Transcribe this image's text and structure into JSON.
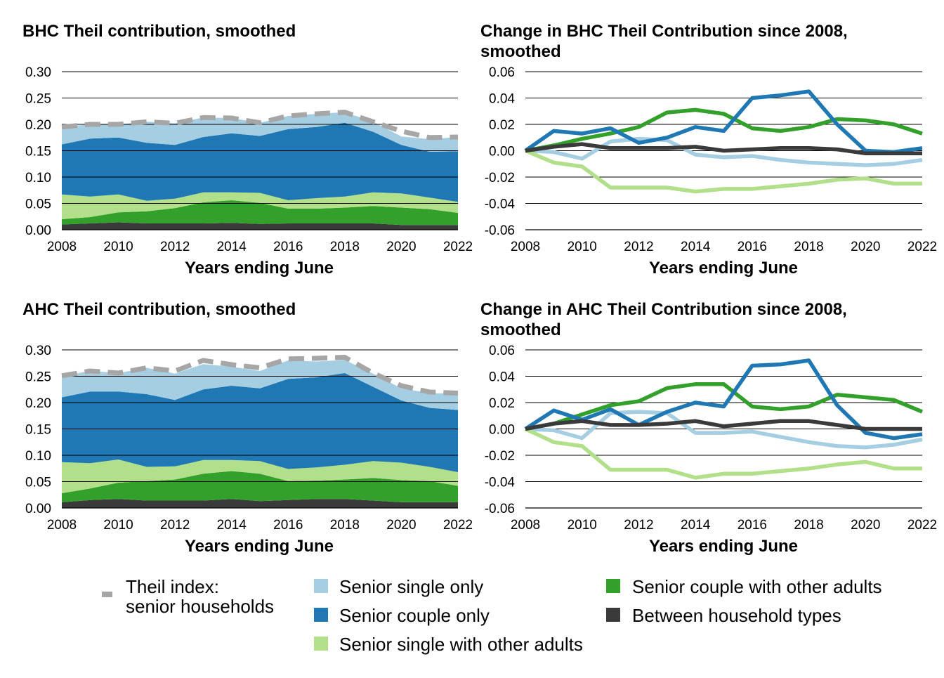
{
  "chart_data": [
    {
      "type": "area",
      "kind": "stacked",
      "title": "BHC Theil contribution, smoothed",
      "xlabel": "Years ending June",
      "ylabel": "",
      "x": [
        2008,
        2009,
        2010,
        2011,
        2012,
        2013,
        2014,
        2015,
        2016,
        2017,
        2018,
        2019,
        2020,
        2021,
        2022
      ],
      "xticks": [
        "2008",
        "2010",
        "2012",
        "2014",
        "2016",
        "2018",
        "2020",
        "2022"
      ],
      "yticks": [
        "0.00",
        "0.05",
        "0.10",
        "0.15",
        "0.20",
        "0.25",
        "0.30"
      ],
      "ylim": [
        0,
        0.3
      ],
      "series": [
        {
          "name": "Between household types",
          "values": [
            0.01,
            0.012,
            0.014,
            0.012,
            0.012,
            0.012,
            0.013,
            0.011,
            0.012,
            0.012,
            0.012,
            0.012,
            0.009,
            0.009,
            0.009
          ]
        },
        {
          "name": "Senior couple with other adults",
          "values": [
            0.01,
            0.012,
            0.019,
            0.023,
            0.029,
            0.04,
            0.043,
            0.04,
            0.028,
            0.028,
            0.03,
            0.033,
            0.033,
            0.03,
            0.023
          ]
        },
        {
          "name": "Senior single with other adults",
          "values": [
            0.047,
            0.039,
            0.034,
            0.02,
            0.018,
            0.019,
            0.015,
            0.019,
            0.016,
            0.02,
            0.021,
            0.026,
            0.027,
            0.022,
            0.021
          ]
        },
        {
          "name": "Senior couple only",
          "values": [
            0.095,
            0.11,
            0.108,
            0.11,
            0.102,
            0.105,
            0.112,
            0.108,
            0.135,
            0.135,
            0.14,
            0.115,
            0.092,
            0.087,
            0.096
          ]
        },
        {
          "name": "Senior single only",
          "values": [
            0.033,
            0.027,
            0.025,
            0.04,
            0.041,
            0.037,
            0.029,
            0.025,
            0.025,
            0.025,
            0.02,
            0.019,
            0.016,
            0.024,
            0.027
          ]
        }
      ],
      "total": {
        "name": "Theil index: senior households",
        "values": [
          0.195,
          0.2,
          0.2,
          0.205,
          0.202,
          0.213,
          0.212,
          0.203,
          0.216,
          0.22,
          0.223,
          0.205,
          0.187,
          0.175,
          0.176
        ]
      }
    },
    {
      "type": "line",
      "title": "Change in BHC Theil Contribution since 2008, smoothed",
      "xlabel": "Years ending June",
      "ylabel": "",
      "x": [
        2008,
        2009,
        2010,
        2011,
        2012,
        2013,
        2014,
        2015,
        2016,
        2017,
        2018,
        2019,
        2020,
        2021,
        2022
      ],
      "xticks": [
        "2008",
        "2010",
        "2012",
        "2014",
        "2016",
        "2018",
        "2020",
        "2022"
      ],
      "yticks": [
        "-0.06",
        "-0.04",
        "-0.02",
        "0.00",
        "0.02",
        "0.04",
        "0.06"
      ],
      "ylim": [
        -0.06,
        0.06
      ],
      "series": [
        {
          "name": "Senior single only",
          "values": [
            0.0,
            -0.001,
            -0.006,
            0.007,
            0.009,
            0.008,
            -0.003,
            -0.005,
            -0.004,
            -0.007,
            -0.009,
            -0.01,
            -0.011,
            -0.01,
            -0.007
          ]
        },
        {
          "name": "Senior single with other adults",
          "values": [
            0.0,
            -0.009,
            -0.012,
            -0.028,
            -0.028,
            -0.028,
            -0.031,
            -0.029,
            -0.029,
            -0.027,
            -0.025,
            -0.022,
            -0.021,
            -0.025,
            -0.025
          ]
        },
        {
          "name": "Senior couple with other adults",
          "values": [
            0.0,
            0.004,
            0.009,
            0.013,
            0.018,
            0.029,
            0.031,
            0.028,
            0.017,
            0.015,
            0.018,
            0.024,
            0.023,
            0.02,
            0.013
          ]
        },
        {
          "name": "Senior couple only",
          "values": [
            0.0,
            0.015,
            0.013,
            0.017,
            0.006,
            0.01,
            0.018,
            0.015,
            0.04,
            0.042,
            0.045,
            0.02,
            0.0,
            -0.001,
            0.002
          ]
        },
        {
          "name": "Between household types",
          "values": [
            0.0,
            0.003,
            0.005,
            0.002,
            0.002,
            0.002,
            0.003,
            0.0,
            0.001,
            0.002,
            0.002,
            0.001,
            -0.002,
            -0.002,
            -0.002
          ]
        }
      ]
    },
    {
      "type": "area",
      "kind": "stacked",
      "title": "AHC Theil contribution, smoothed",
      "xlabel": "Years ending June",
      "ylabel": "",
      "x": [
        2008,
        2009,
        2010,
        2011,
        2012,
        2013,
        2014,
        2015,
        2016,
        2017,
        2018,
        2019,
        2020,
        2021,
        2022
      ],
      "xticks": [
        "2008",
        "2010",
        "2012",
        "2014",
        "2016",
        "2018",
        "2020",
        "2022"
      ],
      "yticks": [
        "0.00",
        "0.05",
        "0.10",
        "0.15",
        "0.20",
        "0.25",
        "0.30"
      ],
      "ylim": [
        0,
        0.3
      ],
      "series": [
        {
          "name": "Between household types",
          "values": [
            0.011,
            0.015,
            0.017,
            0.014,
            0.014,
            0.014,
            0.017,
            0.013,
            0.015,
            0.017,
            0.017,
            0.014,
            0.011,
            0.011,
            0.011
          ]
        },
        {
          "name": "Senior couple with other adults",
          "values": [
            0.017,
            0.022,
            0.031,
            0.037,
            0.04,
            0.051,
            0.053,
            0.052,
            0.036,
            0.035,
            0.037,
            0.043,
            0.042,
            0.04,
            0.031
          ]
        },
        {
          "name": "Senior single with other adults",
          "values": [
            0.059,
            0.048,
            0.044,
            0.027,
            0.025,
            0.026,
            0.021,
            0.024,
            0.023,
            0.025,
            0.028,
            0.032,
            0.033,
            0.027,
            0.026
          ]
        },
        {
          "name": "Senior couple only",
          "values": [
            0.123,
            0.136,
            0.129,
            0.138,
            0.126,
            0.134,
            0.141,
            0.138,
            0.171,
            0.171,
            0.174,
            0.141,
            0.118,
            0.112,
            0.118
          ]
        },
        {
          "name": "Senior single only",
          "values": [
            0.04,
            0.039,
            0.035,
            0.05,
            0.05,
            0.048,
            0.036,
            0.033,
            0.035,
            0.03,
            0.025,
            0.025,
            0.023,
            0.028,
            0.031
          ]
        }
      ],
      "total": {
        "name": "Theil index: senior households",
        "values": [
          0.251,
          0.26,
          0.256,
          0.266,
          0.26,
          0.28,
          0.272,
          0.266,
          0.283,
          0.284,
          0.286,
          0.256,
          0.232,
          0.22,
          0.218
        ]
      }
    },
    {
      "type": "line",
      "title": "Change in AHC Theil Contribution since 2008, smoothed",
      "xlabel": "Years ending June",
      "ylabel": "",
      "x": [
        2008,
        2009,
        2010,
        2011,
        2012,
        2013,
        2014,
        2015,
        2016,
        2017,
        2018,
        2019,
        2020,
        2021,
        2022
      ],
      "xticks": [
        "2008",
        "2010",
        "2012",
        "2014",
        "2016",
        "2018",
        "2020",
        "2022"
      ],
      "yticks": [
        "-0.06",
        "-0.04",
        "-0.02",
        "0.00",
        "0.02",
        "0.04",
        "0.06"
      ],
      "ylim": [
        -0.06,
        0.06
      ],
      "series": [
        {
          "name": "Senior single only",
          "values": [
            0.0,
            -0.001,
            -0.007,
            0.012,
            0.013,
            0.012,
            -0.003,
            -0.003,
            -0.002,
            -0.006,
            -0.01,
            -0.013,
            -0.014,
            -0.012,
            -0.008
          ]
        },
        {
          "name": "Senior single with other adults",
          "values": [
            0.0,
            -0.01,
            -0.013,
            -0.031,
            -0.031,
            -0.031,
            -0.037,
            -0.034,
            -0.034,
            -0.032,
            -0.03,
            -0.027,
            -0.025,
            -0.03,
            -0.03
          ]
        },
        {
          "name": "Senior couple with other adults",
          "values": [
            0.0,
            0.004,
            0.011,
            0.018,
            0.021,
            0.031,
            0.034,
            0.034,
            0.017,
            0.015,
            0.017,
            0.026,
            0.024,
            0.022,
            0.013
          ]
        },
        {
          "name": "Senior couple only",
          "values": [
            0.0,
            0.014,
            0.007,
            0.015,
            0.003,
            0.013,
            0.02,
            0.017,
            0.048,
            0.049,
            0.052,
            0.018,
            -0.003,
            -0.007,
            -0.004
          ]
        },
        {
          "name": "Between household types",
          "values": [
            0.0,
            0.004,
            0.006,
            0.003,
            0.003,
            0.004,
            0.006,
            0.002,
            0.004,
            0.006,
            0.006,
            0.003,
            0.0,
            0.0,
            0.0
          ]
        }
      ]
    }
  ],
  "legend": {
    "items": [
      {
        "label_lines": [
          "Theil index:",
          "senior households"
        ],
        "color": "#a6a6a6",
        "style": "dashed"
      },
      {
        "label_lines": [
          "Senior single only"
        ],
        "color": "#a6cee3",
        "style": "box"
      },
      {
        "label_lines": [
          "Senior couple only"
        ],
        "color": "#1f78b4",
        "style": "box"
      },
      {
        "label_lines": [
          "Senior single with other adults"
        ],
        "color": "#b2df8a",
        "style": "box"
      },
      {
        "label_lines": [
          "Senior couple with other adults"
        ],
        "color": "#33a02c",
        "style": "box"
      },
      {
        "label_lines": [
          "Between household types"
        ],
        "color": "#3a3a3a",
        "style": "box"
      }
    ]
  },
  "colors": {
    "Senior single only": "#a6cee3",
    "Senior couple only": "#1f78b4",
    "Senior single with other adults": "#b2df8a",
    "Senior couple with other adults": "#33a02c",
    "Between household types": "#3a3a3a",
    "Theil index: senior households": "#a6a6a6",
    "grid": "#000000"
  }
}
